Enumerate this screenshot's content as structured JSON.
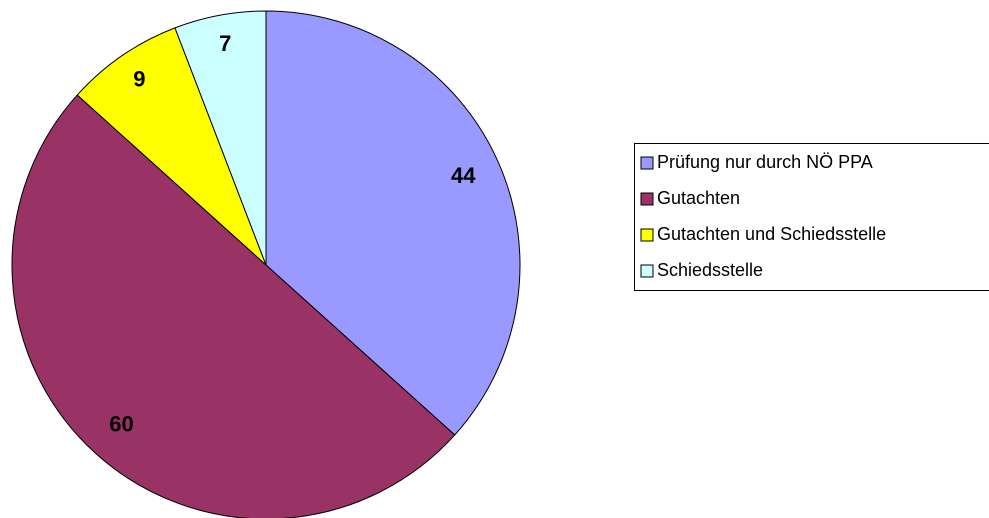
{
  "chart_data": {
    "type": "pie",
    "categories": [
      "Prüfung nur durch NÖ PPA",
      "Gutachten",
      "Gutachten und Schiedsstelle",
      "Schiedsstelle"
    ],
    "values": [
      44,
      60,
      9,
      7
    ],
    "colors": [
      "#9999ff",
      "#993366",
      "#ffff00",
      "#ccffff"
    ],
    "legend": "right"
  }
}
